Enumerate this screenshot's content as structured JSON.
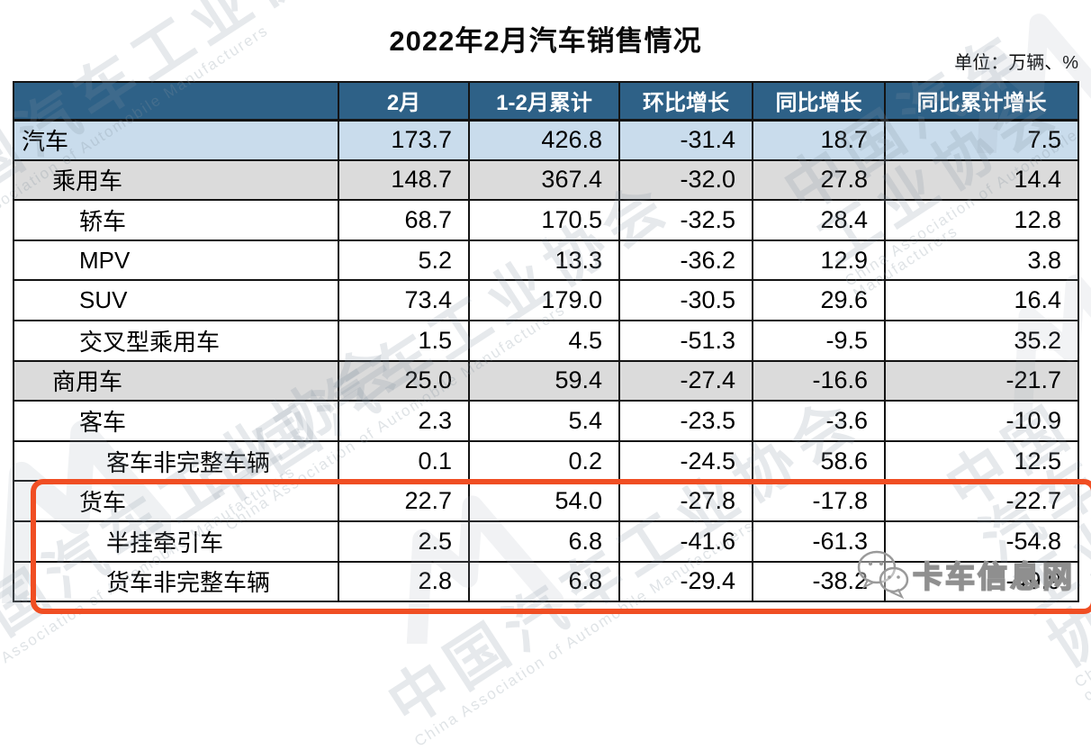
{
  "page": {
    "title": "2022年2月汽车销售情况",
    "unit_note": "单位：万辆、%"
  },
  "chart_data": {
    "type": "table",
    "title": "2022年2月汽车销售情况",
    "unit": "单位：万辆、%",
    "columns": [
      "",
      "2月",
      "1-2月累计",
      "环比增长",
      "同比增长",
      "同比累计增长"
    ],
    "rows": [
      {
        "label": "汽车",
        "indent": 0,
        "shade": "blue",
        "values": [
          173.7,
          426.8,
          -31.4,
          18.7,
          7.5
        ]
      },
      {
        "label": "乘用车",
        "indent": 1,
        "shade": "gray",
        "values": [
          148.7,
          367.4,
          -32.0,
          27.8,
          14.4
        ]
      },
      {
        "label": "轿车",
        "indent": 2,
        "shade": "white",
        "values": [
          68.7,
          170.5,
          -32.5,
          28.4,
          12.8
        ]
      },
      {
        "label": "MPV",
        "indent": 2,
        "shade": "white",
        "values": [
          5.2,
          13.3,
          -36.2,
          12.9,
          3.8
        ]
      },
      {
        "label": "SUV",
        "indent": 2,
        "shade": "white",
        "values": [
          73.4,
          179.0,
          -30.5,
          29.6,
          16.4
        ]
      },
      {
        "label": "交叉型乘用车",
        "indent": 2,
        "shade": "white",
        "values": [
          1.5,
          4.5,
          -51.3,
          -9.5,
          35.2
        ]
      },
      {
        "label": "商用车",
        "indent": 1,
        "shade": "gray",
        "values": [
          25.0,
          59.4,
          -27.4,
          -16.6,
          -21.7
        ]
      },
      {
        "label": "客车",
        "indent": 2,
        "shade": "white",
        "values": [
          2.3,
          5.4,
          -23.5,
          -3.6,
          -10.9
        ]
      },
      {
        "label": "客车非完整车辆",
        "indent": 3,
        "shade": "white",
        "values": [
          0.1,
          0.2,
          -24.5,
          58.6,
          12.5
        ]
      },
      {
        "label": "货车",
        "indent": 2,
        "shade": "white",
        "values": [
          22.7,
          54.0,
          -27.8,
          -17.8,
          -22.7
        ]
      },
      {
        "label": "半挂牵引车",
        "indent": 3,
        "shade": "white",
        "values": [
          2.5,
          6.8,
          -41.6,
          -61.3,
          -54.8
        ]
      },
      {
        "label": "货车非完整车辆",
        "indent": 3,
        "shade": "white",
        "values": [
          2.8,
          6.8,
          -29.4,
          -38.2,
          -49.9
        ]
      }
    ],
    "highlighted_row_labels": [
      "货车",
      "半挂牵引车",
      "货车非完整车辆"
    ],
    "layout_hints": {
      "header_style": "dark-blue with white bold text",
      "highlight": "orange rounded rectangle around last three rows"
    }
  },
  "watermark": {
    "diagonal_text": "中国汽车工业协会",
    "diagonal_subtext": "China Association of Automobile Manufacturers",
    "badge_text": "卡车信息网",
    "badge_icon": "wechat-icon"
  },
  "colors": {
    "header_bg": "#2E6187",
    "header_text": "#FFFFFF",
    "row_blue": "#C9DCEC",
    "row_gray": "#DBDBDB",
    "highlight_border": "#F04E23",
    "watermark_gray": "#AEB8C2"
  }
}
